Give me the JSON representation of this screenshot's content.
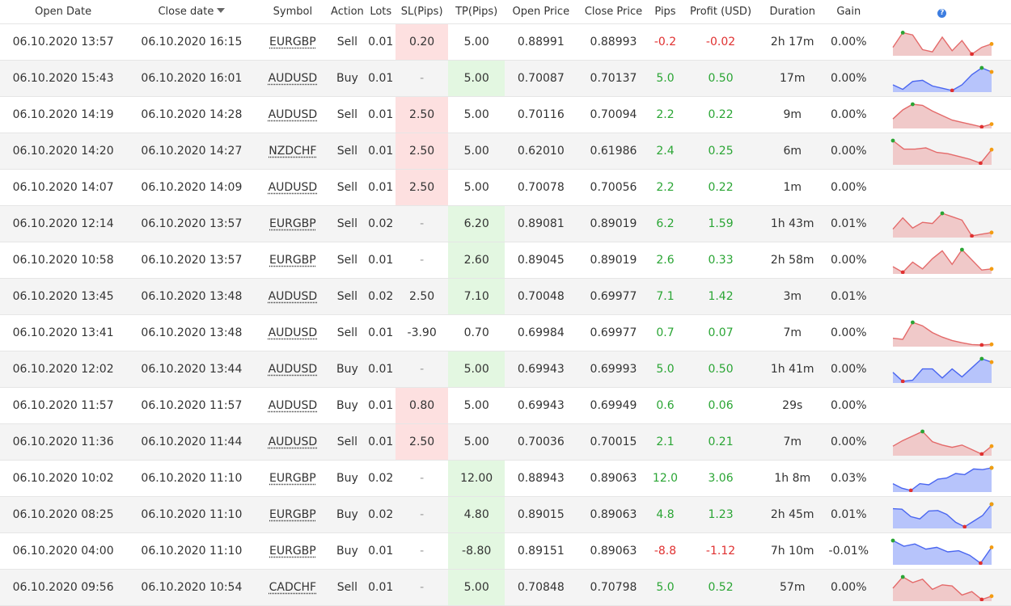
{
  "headers": {
    "open_date": "Open Date",
    "close_date": "Close date",
    "symbol": "Symbol",
    "action": "Action",
    "lots": "Lots",
    "sl": "SL(Pips)",
    "tp": "TP(Pips)",
    "open_price": "Open Price",
    "close_price": "Close Price",
    "pips": "Pips",
    "profit": "Profit (USD)",
    "duration": "Duration",
    "gain": "Gain",
    "help_icon": "?"
  },
  "colors": {
    "profit_positive": "#2aa534",
    "profit_negative": "#e03131",
    "sl_highlight": "#fde0e0",
    "tp_highlight": "#e3f7e1",
    "sell_chart_fill": "#f0c9c9",
    "sell_chart_line": "#e46a6a",
    "buy_chart_fill": "#b7c4fb",
    "buy_chart_line": "#4a66f0",
    "marker_max": "#2aa534",
    "marker_min": "#e03131",
    "marker_end": "#f39c12"
  },
  "trades": [
    {
      "open_date": "06.10.2020 13:57",
      "close_date": "06.10.2020 16:15",
      "symbol": "EURGBP",
      "action": "Sell",
      "lots": "0.01",
      "sl": "0.20",
      "sl_hl": true,
      "tp": "5.00",
      "tp_hl": false,
      "open_price": "0.88991",
      "close_price": "0.88993",
      "pips": "-0.2",
      "profit": "-0.02",
      "duration": "2h 17m",
      "gain": "0.00%",
      "spark": [
        0.3,
        0.95,
        0.85,
        0.2,
        0.1,
        0.75,
        0.15,
        0.6,
        0.0,
        0.3,
        0.45
      ]
    },
    {
      "open_date": "06.10.2020 15:43",
      "close_date": "06.10.2020 16:01",
      "symbol": "AUDUSD",
      "action": "Buy",
      "lots": "0.01",
      "sl": "-",
      "sl_hl": false,
      "tp": "5.00",
      "tp_hl": true,
      "open_price": "0.70087",
      "close_price": "0.70137",
      "pips": "5.0",
      "profit": "0.50",
      "duration": "17m",
      "gain": "0.00%",
      "spark": [
        0.25,
        0.05,
        0.4,
        0.45,
        0.2,
        0.1,
        0.0,
        0.25,
        0.7,
        1.0,
        0.82
      ]
    },
    {
      "open_date": "06.10.2020 14:19",
      "close_date": "06.10.2020 14:28",
      "symbol": "AUDUSD",
      "action": "Sell",
      "lots": "0.01",
      "sl": "2.50",
      "sl_hl": true,
      "tp": "5.00",
      "tp_hl": false,
      "open_price": "0.70116",
      "close_price": "0.70094",
      "pips": "2.2",
      "profit": "0.22",
      "duration": "9m",
      "gain": "0.00%",
      "spark": [
        0.35,
        0.75,
        1.0,
        0.95,
        0.7,
        0.5,
        0.3,
        0.2,
        0.1,
        0.0,
        0.12
      ]
    },
    {
      "open_date": "06.10.2020 14:20",
      "close_date": "06.10.2020 14:27",
      "symbol": "NZDCHF",
      "action": "Sell",
      "lots": "0.01",
      "sl": "2.50",
      "sl_hl": true,
      "tp": "5.00",
      "tp_hl": false,
      "open_price": "0.62010",
      "close_price": "0.61986",
      "pips": "2.4",
      "profit": "0.25",
      "duration": "6m",
      "gain": "0.00%",
      "spark": [
        1.0,
        0.62,
        0.62,
        0.68,
        0.48,
        0.42,
        0.3,
        0.18,
        0.0,
        0.6
      ]
    },
    {
      "open_date": "06.10.2020 14:07",
      "close_date": "06.10.2020 14:09",
      "symbol": "AUDUSD",
      "action": "Sell",
      "lots": "0.01",
      "sl": "2.50",
      "sl_hl": true,
      "tp": "5.00",
      "tp_hl": false,
      "open_price": "0.70078",
      "close_price": "0.70056",
      "pips": "2.2",
      "profit": "0.22",
      "duration": "1m",
      "gain": "0.00%",
      "spark": []
    },
    {
      "open_date": "06.10.2020 12:14",
      "close_date": "06.10.2020 13:57",
      "symbol": "EURGBP",
      "action": "Sell",
      "lots": "0.02",
      "sl": "-",
      "sl_hl": false,
      "tp": "6.20",
      "tp_hl": true,
      "open_price": "0.89081",
      "close_price": "0.89019",
      "pips": "6.2",
      "profit": "1.59",
      "duration": "1h 43m",
      "gain": "0.01%",
      "spark": [
        0.3,
        0.8,
        0.35,
        0.6,
        0.55,
        1.0,
        0.85,
        0.7,
        0.0,
        0.08,
        0.15
      ]
    },
    {
      "open_date": "06.10.2020 10:58",
      "close_date": "06.10.2020 13:57",
      "symbol": "EURGBP",
      "action": "Sell",
      "lots": "0.01",
      "sl": "-",
      "sl_hl": false,
      "tp": "2.60",
      "tp_hl": true,
      "open_price": "0.89045",
      "close_price": "0.89019",
      "pips": "2.6",
      "profit": "0.33",
      "duration": "2h 58m",
      "gain": "0.00%",
      "spark": [
        0.25,
        0.0,
        0.45,
        0.15,
        0.6,
        0.95,
        0.35,
        1.0,
        0.55,
        0.1,
        0.15
      ]
    },
    {
      "open_date": "06.10.2020 13:45",
      "close_date": "06.10.2020 13:48",
      "symbol": "AUDUSD",
      "action": "Sell",
      "lots": "0.02",
      "sl": "2.50",
      "sl_hl": false,
      "tp": "7.10",
      "tp_hl": true,
      "open_price": "0.70048",
      "close_price": "0.69977",
      "pips": "7.1",
      "profit": "1.42",
      "duration": "3m",
      "gain": "0.01%",
      "spark": []
    },
    {
      "open_date": "06.10.2020 13:41",
      "close_date": "06.10.2020 13:48",
      "symbol": "AUDUSD",
      "action": "Sell",
      "lots": "0.01",
      "sl": "-3.90",
      "sl_hl": false,
      "tp": "0.70",
      "tp_hl": false,
      "open_price": "0.69984",
      "close_price": "0.69977",
      "pips": "0.7",
      "profit": "0.07",
      "duration": "7m",
      "gain": "0.00%",
      "spark": [
        0.3,
        0.25,
        1.0,
        0.85,
        0.55,
        0.35,
        0.2,
        0.1,
        0.02,
        0.0,
        0.03
      ]
    },
    {
      "open_date": "06.10.2020 12:02",
      "close_date": "06.10.2020 13:44",
      "symbol": "AUDUSD",
      "action": "Buy",
      "lots": "0.01",
      "sl": "-",
      "sl_hl": false,
      "tp": "5.00",
      "tp_hl": true,
      "open_price": "0.69943",
      "close_price": "0.69993",
      "pips": "5.0",
      "profit": "0.50",
      "duration": "1h 41m",
      "gain": "0.00%",
      "spark": [
        0.4,
        0.0,
        0.05,
        0.55,
        0.55,
        0.15,
        0.55,
        0.2,
        0.6,
        1.0,
        0.85
      ]
    },
    {
      "open_date": "06.10.2020 11:57",
      "close_date": "06.10.2020 11:57",
      "symbol": "AUDUSD",
      "action": "Buy",
      "lots": "0.01",
      "sl": "0.80",
      "sl_hl": true,
      "tp": "5.00",
      "tp_hl": false,
      "open_price": "0.69943",
      "close_price": "0.69949",
      "pips": "0.6",
      "profit": "0.06",
      "duration": "29s",
      "gain": "0.00%",
      "spark": []
    },
    {
      "open_date": "06.10.2020 11:36",
      "close_date": "06.10.2020 11:44",
      "symbol": "AUDUSD",
      "action": "Sell",
      "lots": "0.01",
      "sl": "2.50",
      "sl_hl": true,
      "tp": "5.00",
      "tp_hl": false,
      "open_price": "0.70036",
      "close_price": "0.70015",
      "pips": "2.1",
      "profit": "0.21",
      "duration": "7m",
      "gain": "0.00%",
      "spark": [
        0.35,
        0.6,
        0.8,
        1.0,
        0.55,
        0.4,
        0.3,
        0.4,
        0.2,
        0.0,
        0.35
      ]
    },
    {
      "open_date": "06.10.2020 10:02",
      "close_date": "06.10.2020 11:10",
      "symbol": "EURGBP",
      "action": "Buy",
      "lots": "0.02",
      "sl": "-",
      "sl_hl": false,
      "tp": "12.00",
      "tp_hl": true,
      "open_price": "0.88943",
      "close_price": "0.89063",
      "pips": "12.0",
      "profit": "3.06",
      "duration": "1h 8m",
      "gain": "0.03%",
      "spark": [
        0.3,
        0.1,
        0.0,
        0.3,
        0.25,
        0.5,
        0.55,
        0.75,
        0.7,
        0.95,
        0.92,
        1.0
      ]
    },
    {
      "open_date": "06.10.2020 08:25",
      "close_date": "06.10.2020 11:10",
      "symbol": "EURGBP",
      "action": "Buy",
      "lots": "0.02",
      "sl": "-",
      "sl_hl": false,
      "tp": "4.80",
      "tp_hl": true,
      "open_price": "0.89015",
      "close_price": "0.89063",
      "pips": "4.8",
      "profit": "1.23",
      "duration": "2h 45m",
      "gain": "0.01%",
      "spark": [
        0.8,
        0.78,
        0.45,
        0.35,
        0.7,
        0.72,
        0.55,
        0.2,
        0.0,
        0.25,
        0.5,
        1.0
      ]
    },
    {
      "open_date": "06.10.2020 04:00",
      "close_date": "06.10.2020 11:10",
      "symbol": "EURGBP",
      "action": "Buy",
      "lots": "0.01",
      "sl": "-",
      "sl_hl": false,
      "tp": "-8.80",
      "tp_hl": true,
      "open_price": "0.89151",
      "close_price": "0.89063",
      "pips": "-8.8",
      "profit": "-1.12",
      "duration": "7h 10m",
      "gain": "-0.01%",
      "spark": [
        1.0,
        0.75,
        0.85,
        0.62,
        0.7,
        0.5,
        0.55,
        0.35,
        0.0,
        0.7
      ]
    },
    {
      "open_date": "06.10.2020 09:56",
      "close_date": "06.10.2020 10:54",
      "symbol": "CADCHF",
      "action": "Sell",
      "lots": "0.01",
      "sl": "-",
      "sl_hl": false,
      "tp": "5.00",
      "tp_hl": true,
      "open_price": "0.70848",
      "close_price": "0.70798",
      "pips": "5.0",
      "profit": "0.52",
      "duration": "57m",
      "gain": "0.00%",
      "spark": [
        0.5,
        1.0,
        0.75,
        0.9,
        0.45,
        0.65,
        0.6,
        0.2,
        0.35,
        0.0,
        0.15
      ]
    }
  ]
}
